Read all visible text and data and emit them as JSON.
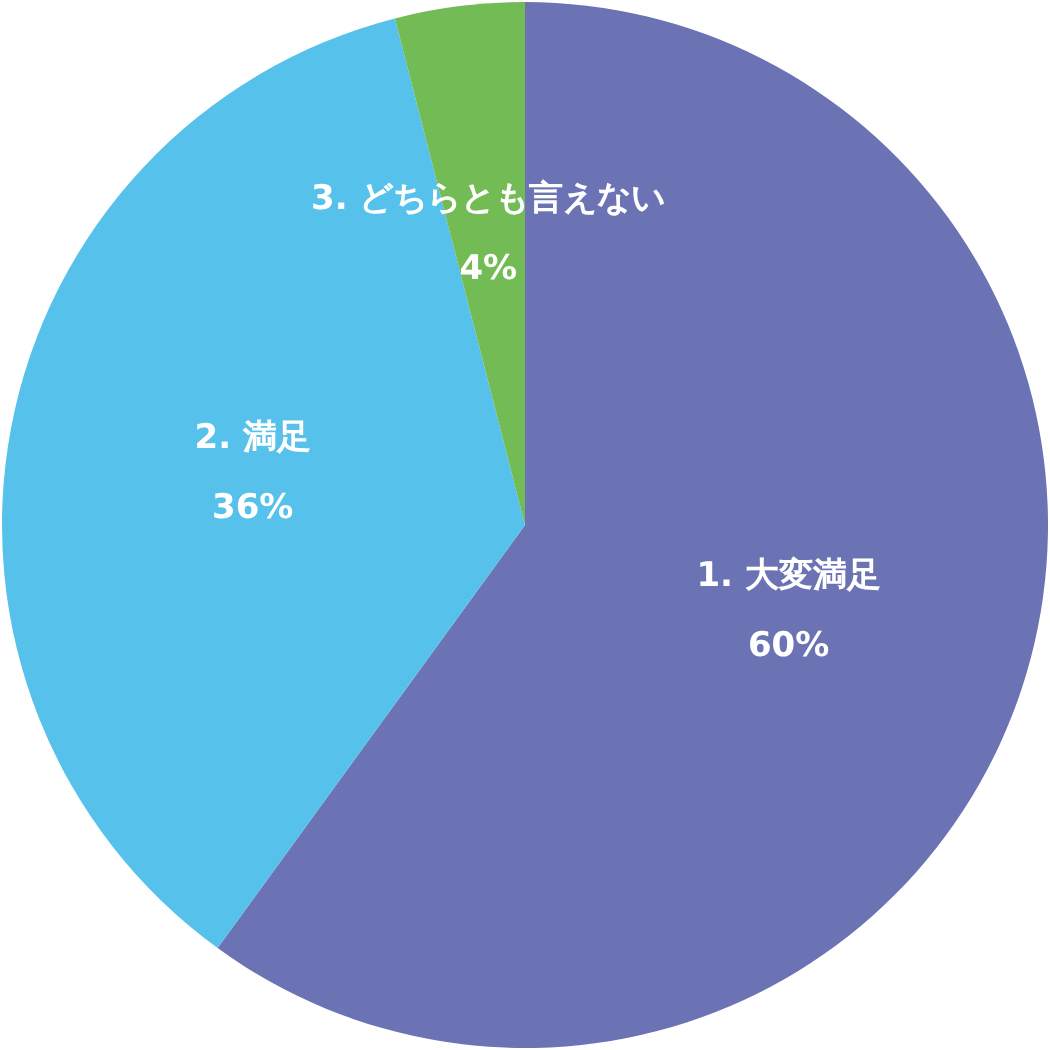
{
  "chart_data": {
    "type": "pie",
    "categories": [
      "1. 大変満足",
      "2. 満足",
      "3. どちらとも言えない"
    ],
    "values": [
      60,
      36,
      4
    ],
    "colors": [
      "#6b73b5",
      "#56c1ea",
      "#72bb55"
    ],
    "value_labels": [
      "60%",
      "36%",
      "4%"
    ],
    "legend": false
  }
}
